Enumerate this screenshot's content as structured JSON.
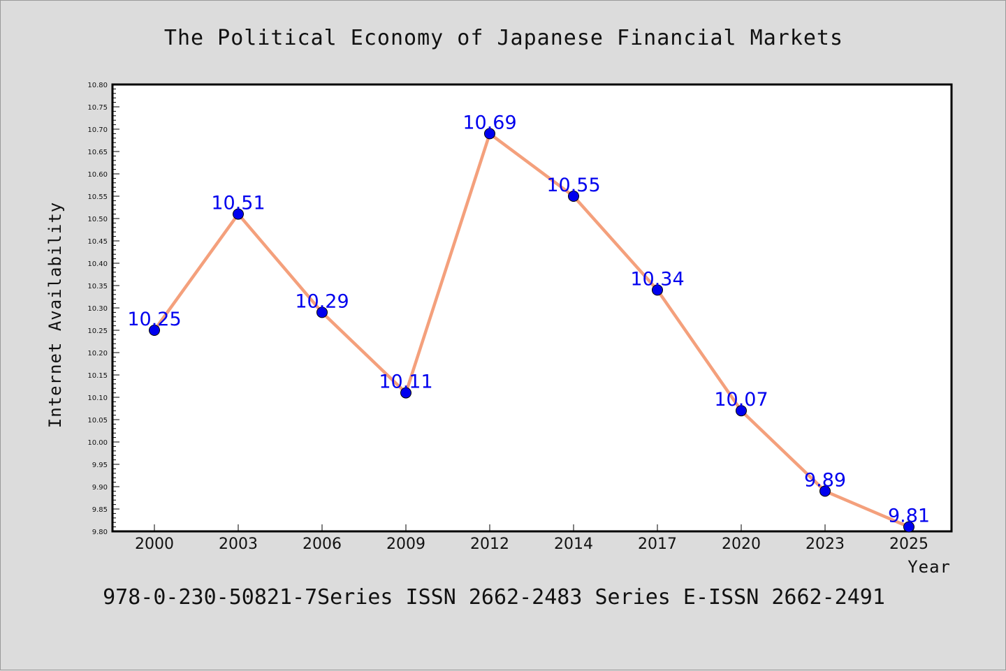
{
  "chart_data": {
    "type": "line",
    "title": "The Political Economy of Japanese Financial Markets",
    "xlabel": "Year",
    "ylabel": "Internet Availability",
    "categories": [
      "2000",
      "2003",
      "2006",
      "2009",
      "2012",
      "2014",
      "2017",
      "2020",
      "2023",
      "2025"
    ],
    "series": [
      {
        "values": [
          10.25,
          10.51,
          10.29,
          10.11,
          10.69,
          10.55,
          10.34,
          10.07,
          9.89,
          9.81
        ],
        "data_labels": [
          "10.25",
          "10.51",
          "10.29",
          "10.11",
          "10.69",
          "10.55",
          "10.34",
          "10.07",
          "9.89",
          "9.81"
        ]
      }
    ],
    "ylim": [
      9.8,
      10.8
    ],
    "y_major_step": 0.05,
    "y_tick_labels": [
      "9.80",
      "9.85",
      "9.90",
      "9.95",
      "10.00",
      "10.05",
      "10.10",
      "10.15",
      "10.20",
      "10.25",
      "10.30",
      "10.35",
      "10.40",
      "10.45",
      "10.50",
      "10.55",
      "10.60",
      "10.65",
      "10.70",
      "10.75",
      "10.80"
    ],
    "grid": false,
    "legend": "none",
    "colors": {
      "line": "#f4a07c",
      "marker": "#0000ee",
      "label": "#0000ee",
      "background": "#dcdcdc",
      "plot_background": "#ffffff"
    }
  },
  "footer": {
    "text": "978-0-230-50821-7Series ISSN 2662-2483 Series E-ISSN 2662-2491"
  }
}
